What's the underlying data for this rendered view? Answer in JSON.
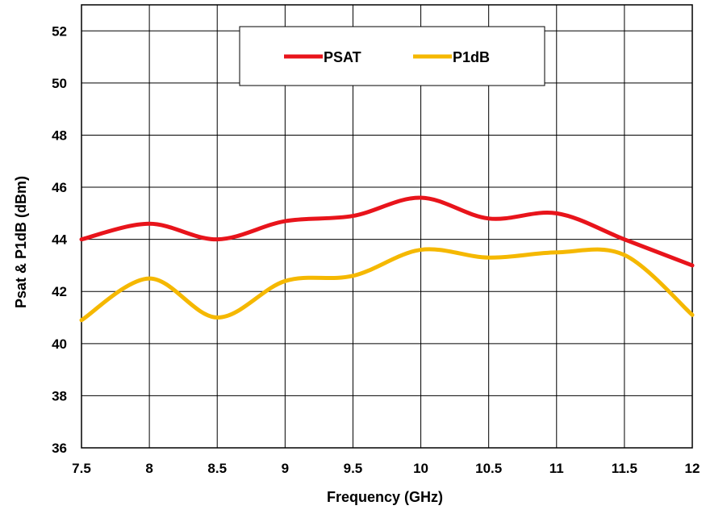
{
  "chart_data": {
    "type": "line",
    "title": "",
    "xlabel": "Frequency (GHz)",
    "ylabel": "Psat & P1dB (dBm)",
    "xlim": [
      7.5,
      12
    ],
    "ylim": [
      36,
      53
    ],
    "x_ticks": [
      7.5,
      8,
      8.5,
      9,
      9.5,
      10,
      10.5,
      11,
      11.5,
      12
    ],
    "y_ticks": [
      36,
      38,
      40,
      42,
      44,
      46,
      48,
      50,
      52
    ],
    "x_tick_labels": [
      "7.5",
      "8",
      "8.5",
      "9",
      "9.5",
      "10",
      "10.5",
      "11",
      "11.5",
      "12"
    ],
    "y_tick_labels": [
      "36",
      "38",
      "40",
      "42",
      "44",
      "46",
      "48",
      "50",
      "52"
    ],
    "grid": true,
    "legend_position": "top-center",
    "series": [
      {
        "name": "PSAT",
        "color": "#e8141b",
        "x": [
          7.5,
          8,
          8.5,
          9,
          9.5,
          10,
          10.5,
          11,
          11.5,
          12
        ],
        "y": [
          44.0,
          44.6,
          44.0,
          44.7,
          44.9,
          45.6,
          44.8,
          45.0,
          44.0,
          43.0
        ]
      },
      {
        "name": "P1dB",
        "color": "#f5b800",
        "x": [
          7.5,
          8,
          8.5,
          9,
          9.5,
          10,
          10.5,
          11,
          11.5,
          12
        ],
        "y": [
          40.9,
          42.5,
          41.0,
          42.4,
          42.6,
          43.6,
          43.3,
          43.5,
          43.4,
          41.1
        ]
      }
    ]
  }
}
